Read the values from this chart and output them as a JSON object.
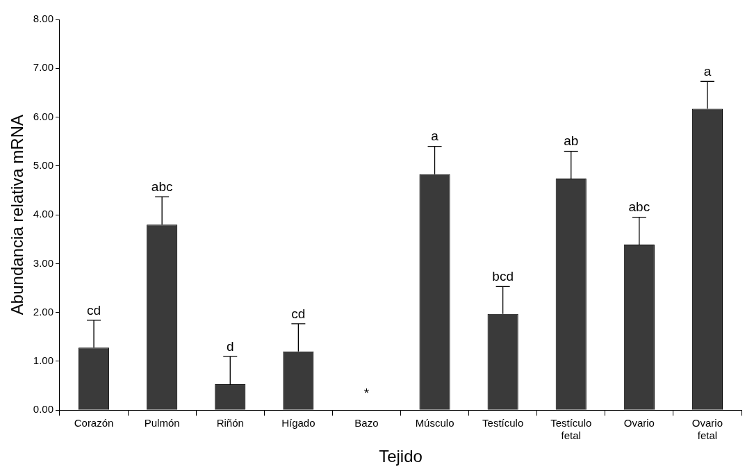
{
  "chart_data": {
    "type": "bar",
    "xlabel": "Tejido",
    "ylabel": "Abundancia relativa mRNA",
    "categories": [
      "Corazón",
      "Pulmón",
      "Riñón",
      "Hígado",
      "Bazo",
      "Músculo",
      "Testículo",
      "Testículo fetal",
      "Ovario",
      "Ovario fetal"
    ],
    "values": [
      1.28,
      3.8,
      0.53,
      1.2,
      null,
      4.83,
      1.97,
      4.74,
      3.39,
      6.17
    ],
    "errors": [
      [
        1.28,
        1.84
      ],
      [
        3.8,
        4.37
      ],
      [
        0.53,
        1.1
      ],
      [
        1.2,
        1.77
      ],
      null,
      [
        4.83,
        5.4
      ],
      [
        1.97,
        2.53
      ],
      [
        4.74,
        5.3
      ],
      [
        3.39,
        3.95
      ],
      [
        6.17,
        6.73
      ]
    ],
    "color": "#3a3a3a",
    "ylim": [
      0,
      8
    ],
    "yticks": [
      {
        "value": 0,
        "label": "0.00"
      },
      {
        "value": 1,
        "label": "1.00"
      },
      {
        "value": 2,
        "label": "2.00"
      },
      {
        "value": 3,
        "label": "3.00"
      },
      {
        "value": 4,
        "label": "4.00"
      },
      {
        "value": 5,
        "label": "5.00"
      },
      {
        "value": 6,
        "label": "6.00"
      },
      {
        "value": 7,
        "label": "7.00"
      },
      {
        "value": 8,
        "label": "8.00"
      }
    ],
    "annotations": [
      {
        "text": "cd",
        "x": "Corazón",
        "y": 1.84
      },
      {
        "text": "abc",
        "x": "Pulmón",
        "y": 4.37
      },
      {
        "text": "d",
        "x": "Riñón",
        "y": 1.1
      },
      {
        "text": "cd",
        "x": "Hígado",
        "y": 1.77
      },
      "*",
      {
        "text": "a",
        "x": "Músculo",
        "y": 5.4
      },
      {
        "text": "bcd",
        "x": "Testículo",
        "y": 2.53
      },
      {
        "text": "ab",
        "x": "Testículo fetal",
        "y": 5.3
      },
      {
        "text": "abc",
        "x": "Ovario",
        "y": 3.95
      },
      {
        "text": "a",
        "x": "Ovario fetal",
        "y": 6.73
      }
    ],
    "grid": false,
    "legend": false
  }
}
